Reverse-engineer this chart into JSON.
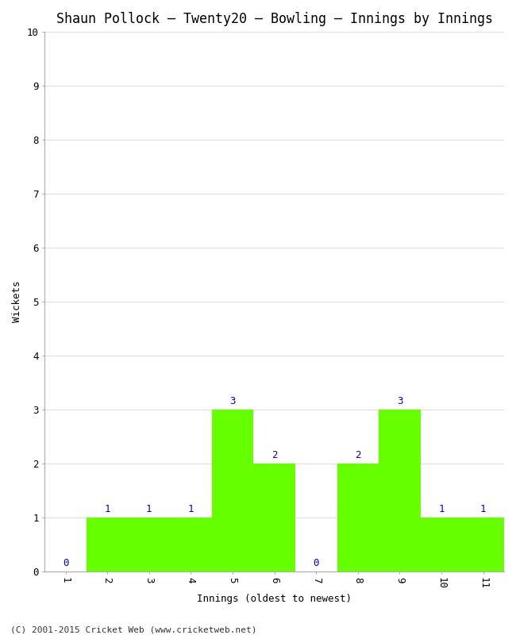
{
  "title": "Shaun Pollock – Twenty20 – Bowling – Innings by Innings",
  "xlabel": "Innings (oldest to newest)",
  "ylabel": "Wickets",
  "categories": [
    1,
    2,
    3,
    4,
    5,
    6,
    7,
    8,
    9,
    10,
    11
  ],
  "values": [
    0,
    1,
    1,
    1,
    3,
    2,
    0,
    2,
    3,
    1,
    1
  ],
  "bar_color": "#66ff00",
  "label_color": "#0000cc",
  "ylim": [
    0,
    10
  ],
  "yticks": [
    0,
    1,
    2,
    3,
    4,
    5,
    6,
    7,
    8,
    9,
    10
  ],
  "xticks": [
    1,
    2,
    3,
    4,
    5,
    6,
    7,
    8,
    9,
    10,
    11
  ],
  "background_color": "#ffffff",
  "grid_color": "#dddddd",
  "footer": "(C) 2001-2015 Cricket Web (www.cricketweb.net)",
  "title_fontsize": 12,
  "label_fontsize": 9,
  "tick_fontsize": 9,
  "annotation_fontsize": 9,
  "footer_fontsize": 8
}
